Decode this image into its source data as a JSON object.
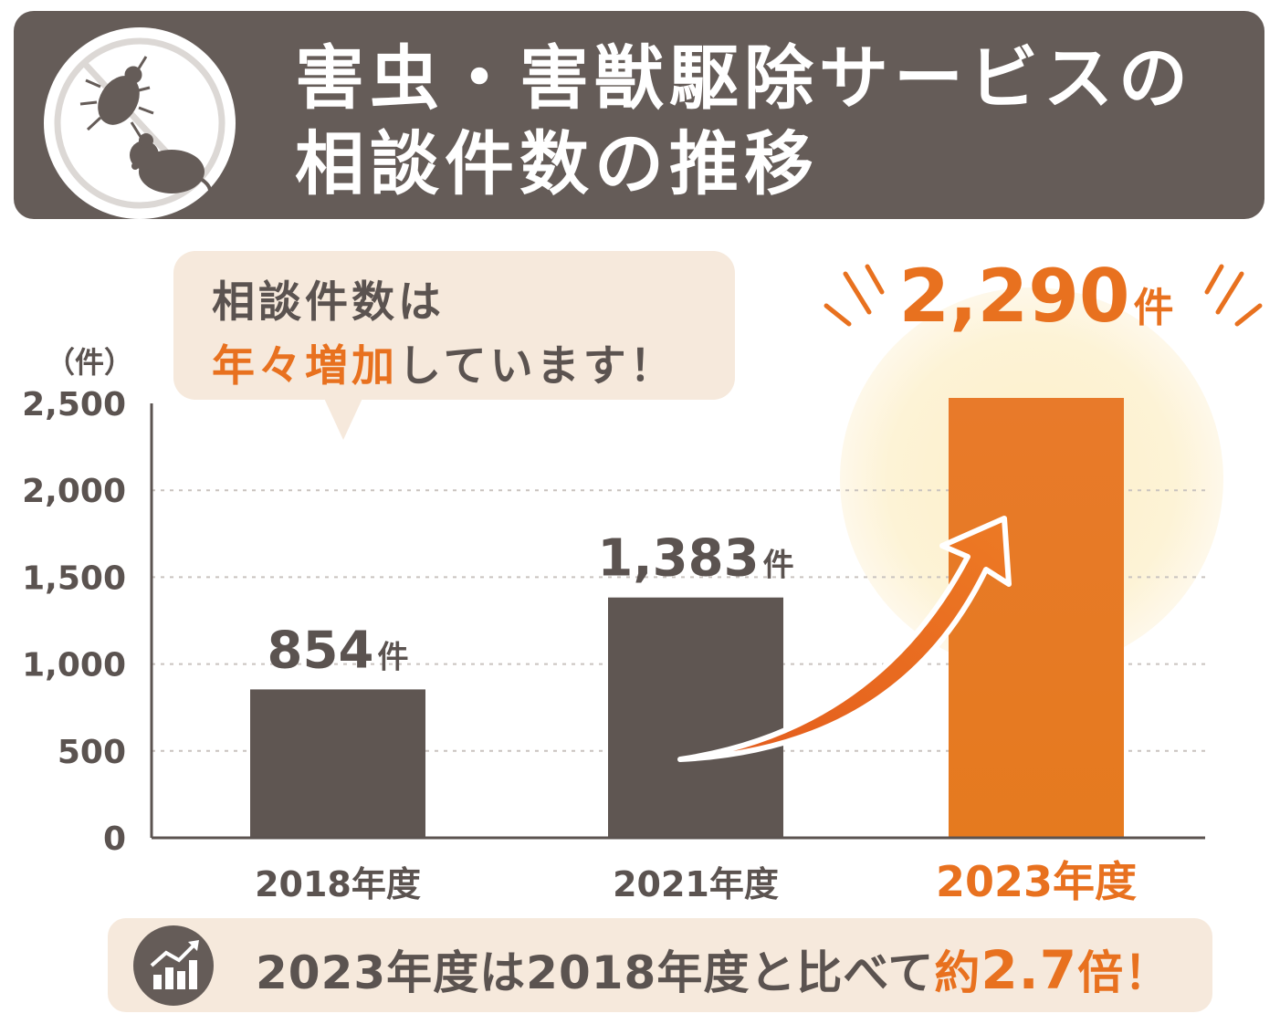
{
  "header": {
    "title_line_1": "害虫・害獣駆除サービスの",
    "title_line_2": "相談件数の推移",
    "logo_icons": [
      "bug-icon",
      "mouse-icon",
      "prohibition-icon"
    ]
  },
  "callout": {
    "line1": "相談件数は",
    "line2_highlight": "年々増加",
    "line2_rest": "しています！"
  },
  "chart_data": {
    "type": "bar",
    "ylabel": "（件）",
    "ylim": [
      0,
      2500
    ],
    "yticks": [
      "2,500",
      "2,000",
      "1,500",
      "1,000",
      "500",
      "0"
    ],
    "ytick_values": [
      2500,
      2000,
      1500,
      1000,
      500,
      0
    ],
    "categories": [
      "2018年度",
      "2021年度",
      "2023年度"
    ],
    "values": [
      854,
      1383,
      2290
    ],
    "value_labels": [
      "854",
      "1,383",
      "2,290"
    ],
    "unit": "件",
    "grid": true,
    "highlight_index": 2
  },
  "footer": {
    "text_pre": "2023年度は2018年度と比べて",
    "text_highlight_prefix": "約",
    "text_highlight_value": "2.7",
    "text_highlight_suffix": "倍！",
    "icon": "growth-chart-icon"
  },
  "colors": {
    "dark": "#655c58",
    "text": "#5b5350",
    "accent": "#e8711f",
    "bubble": "#f6e9dc",
    "glow": "#fdf3d6"
  }
}
